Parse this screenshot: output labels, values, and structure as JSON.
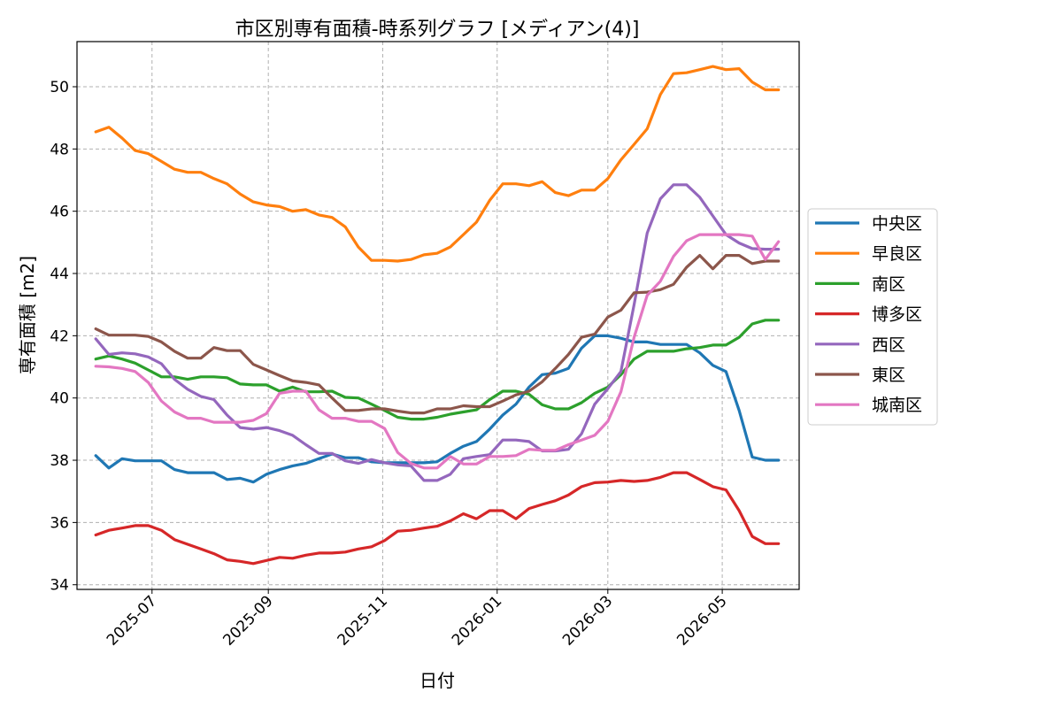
{
  "chart_data": {
    "type": "line",
    "title": "市区別専有面積-時系列グラフ [メディアン(4)]",
    "xlabel": "日付",
    "ylabel": "専有面積 [m2]",
    "xlim": [
      "2025-05-22",
      "2026-06-11"
    ],
    "ylim": [
      33.85,
      51.45
    ],
    "yticks": [
      34,
      36,
      38,
      40,
      42,
      44,
      46,
      48,
      50
    ],
    "xticks": [
      "2025-07",
      "2025-09",
      "2025-11",
      "2026-01",
      "2026-03",
      "2026-05"
    ],
    "grid": true,
    "legend": "center-right",
    "x": [
      "2025-06-01",
      "2025-06-08",
      "2025-06-15",
      "2025-06-22",
      "2025-06-29",
      "2025-07-06",
      "2025-07-13",
      "2025-07-20",
      "2025-07-27",
      "2025-08-03",
      "2025-08-10",
      "2025-08-17",
      "2025-08-24",
      "2025-08-31",
      "2025-09-07",
      "2025-09-14",
      "2025-09-21",
      "2025-09-28",
      "2025-10-05",
      "2025-10-12",
      "2025-10-19",
      "2025-10-26",
      "2025-11-02",
      "2025-11-09",
      "2025-11-16",
      "2025-11-23",
      "2025-11-30",
      "2025-12-07",
      "2025-12-14",
      "2025-12-21",
      "2025-12-28",
      "2026-01-04",
      "2026-01-11",
      "2026-01-18",
      "2026-01-25",
      "2026-02-01",
      "2026-02-08",
      "2026-02-15",
      "2026-02-22",
      "2026-03-01",
      "2026-03-08",
      "2026-03-15",
      "2026-03-22",
      "2026-03-29",
      "2026-04-05",
      "2026-04-12",
      "2026-04-19",
      "2026-04-26",
      "2026-05-03",
      "2026-05-10",
      "2026-05-17",
      "2026-05-24",
      "2026-05-31"
    ],
    "series": [
      {
        "name": "中央区",
        "color": "#1f77b4",
        "values": [
          38.15,
          37.75,
          38.05,
          37.98,
          37.98,
          37.98,
          37.7,
          37.6,
          37.6,
          37.6,
          37.38,
          37.42,
          37.3,
          37.55,
          37.7,
          37.82,
          37.9,
          38.05,
          38.2,
          38.08,
          38.08,
          37.95,
          37.92,
          37.92,
          37.92,
          37.92,
          37.95,
          38.22,
          38.45,
          38.6,
          39.0,
          39.45,
          39.8,
          40.35,
          40.75,
          40.8,
          40.95,
          41.6,
          42.0,
          42.0,
          41.92,
          41.8,
          41.8,
          41.72,
          41.72,
          41.72,
          41.45,
          41.05,
          40.85,
          39.6,
          38.1,
          38.0,
          38.0
        ]
      },
      {
        "name": "早良区",
        "color": "#ff7f0e",
        "values": [
          48.55,
          48.7,
          48.35,
          47.95,
          47.85,
          47.6,
          47.35,
          47.25,
          47.25,
          47.05,
          46.88,
          46.55,
          46.3,
          46.2,
          46.15,
          46.0,
          46.05,
          45.88,
          45.8,
          45.5,
          44.85,
          44.42,
          44.42,
          44.4,
          44.45,
          44.6,
          44.65,
          44.85,
          45.25,
          45.65,
          46.35,
          46.88,
          46.88,
          46.82,
          46.95,
          46.6,
          46.5,
          46.68,
          46.68,
          47.05,
          47.65,
          48.15,
          48.65,
          49.75,
          50.42,
          50.45,
          50.55,
          50.65,
          50.55,
          50.58,
          50.15,
          49.9,
          49.9
        ]
      },
      {
        "name": "南区",
        "color": "#2ca02c",
        "values": [
          41.25,
          41.35,
          41.25,
          41.12,
          40.9,
          40.68,
          40.68,
          40.6,
          40.68,
          40.68,
          40.65,
          40.45,
          40.42,
          40.42,
          40.22,
          40.35,
          40.2,
          40.2,
          40.22,
          40.02,
          40.0,
          39.8,
          39.6,
          39.38,
          39.32,
          39.32,
          39.38,
          39.48,
          39.55,
          39.62,
          39.95,
          40.22,
          40.22,
          40.12,
          39.78,
          39.65,
          39.65,
          39.85,
          40.15,
          40.35,
          40.75,
          41.25,
          41.5,
          41.5,
          41.5,
          41.58,
          41.62,
          41.7,
          41.7,
          41.95,
          42.38,
          42.5,
          42.5
        ]
      },
      {
        "name": "博多区",
        "color": "#d62728",
        "values": [
          35.6,
          35.75,
          35.82,
          35.9,
          35.9,
          35.75,
          35.45,
          35.3,
          35.15,
          35.0,
          34.8,
          34.75,
          34.68,
          34.78,
          34.88,
          34.85,
          34.95,
          35.02,
          35.02,
          35.05,
          35.15,
          35.22,
          35.42,
          35.72,
          35.75,
          35.82,
          35.88,
          36.05,
          36.28,
          36.12,
          36.38,
          36.38,
          36.12,
          36.45,
          36.58,
          36.7,
          36.88,
          37.15,
          37.28,
          37.3,
          37.35,
          37.32,
          37.35,
          37.45,
          37.6,
          37.6,
          37.38,
          37.15,
          37.05,
          36.38,
          35.55,
          35.32,
          35.32
        ]
      },
      {
        "name": "西区",
        "color": "#9467bd",
        "values": [
          41.9,
          41.4,
          41.45,
          41.42,
          41.32,
          41.1,
          40.6,
          40.28,
          40.05,
          39.95,
          39.45,
          39.05,
          39.0,
          39.05,
          38.95,
          38.8,
          38.5,
          38.22,
          38.22,
          37.98,
          37.9,
          38.02,
          37.92,
          37.85,
          37.82,
          37.35,
          37.35,
          37.55,
          38.05,
          38.12,
          38.18,
          38.65,
          38.65,
          38.6,
          38.3,
          38.3,
          38.35,
          38.85,
          39.8,
          40.3,
          40.85,
          43.0,
          45.3,
          46.4,
          46.85,
          46.85,
          46.45,
          45.85,
          45.25,
          44.98,
          44.8,
          44.78,
          44.78
        ]
      },
      {
        "name": "東区",
        "color": "#8c564b",
        "values": [
          42.22,
          42.02,
          42.02,
          42.02,
          41.98,
          41.8,
          41.5,
          41.28,
          41.28,
          41.62,
          41.52,
          41.52,
          41.08,
          40.9,
          40.72,
          40.55,
          40.5,
          40.42,
          40.0,
          39.6,
          39.6,
          39.65,
          39.65,
          39.58,
          39.52,
          39.52,
          39.65,
          39.65,
          39.75,
          39.72,
          39.72,
          39.9,
          40.1,
          40.22,
          40.52,
          40.95,
          41.4,
          41.95,
          42.05,
          42.6,
          42.82,
          43.38,
          43.4,
          43.48,
          43.65,
          44.2,
          44.58,
          44.15,
          44.58,
          44.58,
          44.32,
          44.4,
          44.4
        ]
      },
      {
        "name": "城南区",
        "color": "#e377c2",
        "values": [
          41.02,
          41.0,
          40.95,
          40.85,
          40.5,
          39.9,
          39.55,
          39.35,
          39.35,
          39.22,
          39.22,
          39.22,
          39.28,
          39.5,
          40.15,
          40.22,
          40.22,
          39.62,
          39.35,
          39.35,
          39.25,
          39.25,
          39.02,
          38.25,
          37.9,
          37.75,
          37.75,
          38.12,
          37.88,
          37.88,
          38.12,
          38.12,
          38.15,
          38.35,
          38.32,
          38.32,
          38.5,
          38.65,
          38.8,
          39.25,
          40.2,
          41.95,
          43.3,
          43.75,
          44.55,
          45.05,
          45.25,
          45.25,
          45.25,
          45.25,
          45.2,
          44.45,
          45.02
        ]
      }
    ]
  }
}
